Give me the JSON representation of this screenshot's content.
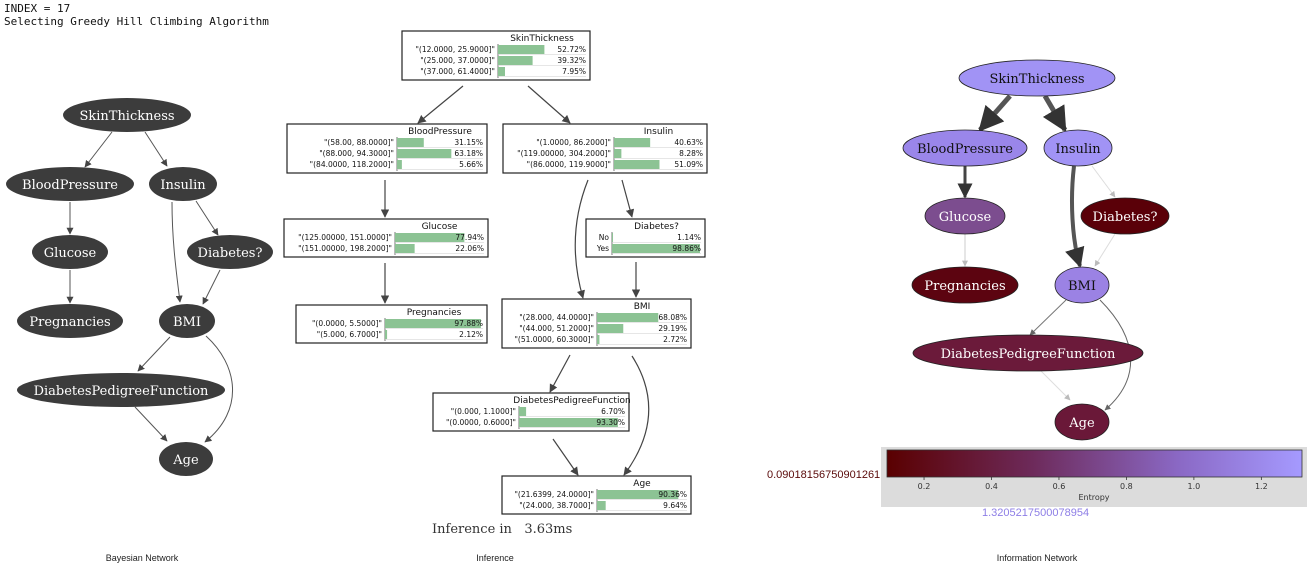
{
  "header": {
    "index_line": "INDEX = 17",
    "algo_line": "Selecting Greedy Hill Climbing Algorithm"
  },
  "captions": {
    "bn": "Bayesian Network",
    "inference": "Inference",
    "info": "Information Network"
  },
  "bn_nodes": {
    "skin": "SkinThickness",
    "bp": "BloodPressure",
    "ins": "Insulin",
    "glu": "Glucose",
    "dia": "Diabetes?",
    "preg": "Pregnancies",
    "bmi": "BMI",
    "dpf": "DiabetesPedigreeFunction",
    "age": "Age"
  },
  "inference": {
    "time_label": "Inference in",
    "time_value": "3.63ms",
    "nodes": [
      {
        "key": "skin",
        "title": "SkinThickness",
        "rows": [
          {
            "label": "\"(12.0000, 25.9000]\"",
            "value": 52.72,
            "pct": "52.72%"
          },
          {
            "label": "\"(25.000, 37.0000]\"",
            "value": 39.32,
            "pct": "39.32%"
          },
          {
            "label": "\"(37.000, 61.4000]\"",
            "value": 7.95,
            "pct": "7.95%"
          }
        ]
      },
      {
        "key": "bp",
        "title": "BloodPressure",
        "rows": [
          {
            "label": "\"(58.00, 88.0000]\"",
            "value": 31.15,
            "pct": "31.15%"
          },
          {
            "label": "\"(88.000, 94.3000]\"",
            "value": 63.18,
            "pct": "63.18%"
          },
          {
            "label": "\"(84.0000, 118.2000]\"",
            "value": 5.66,
            "pct": "5.66%"
          }
        ]
      },
      {
        "key": "ins",
        "title": "Insulin",
        "rows": [
          {
            "label": "\"(1.0000, 86.2000]\"",
            "value": 40.63,
            "pct": "40.63%"
          },
          {
            "label": "\"(119.00000, 304.2000]\"",
            "value": 8.28,
            "pct": "8.28%"
          },
          {
            "label": "\"(86.0000, 119.9000]\"",
            "value": 51.09,
            "pct": "51.09%"
          }
        ]
      },
      {
        "key": "glu",
        "title": "Glucose",
        "rows": [
          {
            "label": "\"(125.00000, 151.0000]\"",
            "value": 77.94,
            "pct": "77.94%"
          },
          {
            "label": "\"(151.00000, 198.2000]\"",
            "value": 22.06,
            "pct": "22.06%"
          }
        ]
      },
      {
        "key": "dia",
        "title": "Diabetes?",
        "rows": [
          {
            "label": "No",
            "value": 1.14,
            "pct": "1.14%"
          },
          {
            "label": "Yes",
            "value": 98.86,
            "pct": "98.86%"
          }
        ]
      },
      {
        "key": "preg",
        "title": "Pregnancies",
        "rows": [
          {
            "label": "\"(0.0000, 5.5000]\"",
            "value": 97.88,
            "pct": "97.88%"
          },
          {
            "label": "\"(5.000, 6.7000]\"",
            "value": 2.12,
            "pct": "2.12%"
          }
        ]
      },
      {
        "key": "bmi",
        "title": "BMI",
        "rows": [
          {
            "label": "\"(28.000, 44.0000]\"",
            "value": 68.08,
            "pct": "68.08%"
          },
          {
            "label": "\"(44.000, 51.2000]\"",
            "value": 29.19,
            "pct": "29.19%"
          },
          {
            "label": "\"(51.0000, 60.3000]\"",
            "value": 2.72,
            "pct": "2.72%"
          }
        ]
      },
      {
        "key": "dpf",
        "title": "DiabetesPedigreeFunction",
        "rows": [
          {
            "label": "\"(0.000, 1.1000]\"",
            "value": 6.7,
            "pct": "6.70%"
          },
          {
            "label": "\"(0.0000, 0.6000]\"",
            "value": 93.3,
            "pct": "93.30%"
          }
        ]
      },
      {
        "key": "age",
        "title": "Age",
        "rows": [
          {
            "label": "\"(21.6399, 24.0000]\"",
            "value": 90.36,
            "pct": "90.36%"
          },
          {
            "label": "\"(24.000, 38.7000]\"",
            "value": 9.64,
            "pct": "9.64%"
          }
        ]
      }
    ]
  },
  "info_network": {
    "nodes": [
      {
        "key": "skin",
        "label": "SkinThickness",
        "color": "#a193f5"
      },
      {
        "key": "bp",
        "label": "BloodPressure",
        "color": "#9a86ea"
      },
      {
        "key": "ins",
        "label": "Insulin",
        "color": "#a193f5"
      },
      {
        "key": "glu",
        "label": "Glucose",
        "color": "#7c4d8f"
      },
      {
        "key": "dia",
        "label": "Diabetes?",
        "color": "#5a0008"
      },
      {
        "key": "preg",
        "label": "Pregnancies",
        "color": "#5c0410"
      },
      {
        "key": "bmi",
        "label": "BMI",
        "color": "#9b82e4"
      },
      {
        "key": "dpf",
        "label": "DiabetesPedigreeFunction",
        "color": "#6b1a3a"
      },
      {
        "key": "age",
        "label": "Age",
        "color": "#6a1838"
      }
    ],
    "colorbar": {
      "label": "Entropy",
      "min_label": "0.09018156750901261",
      "max_label": "1.3205217500078954",
      "min": 0.09018156750901261,
      "max": 1.3205217500078954,
      "ticks": [
        "0.2",
        "0.4",
        "0.6",
        "0.8",
        "1.0",
        "1.2"
      ],
      "tick_values": [
        0.2,
        0.4,
        0.6,
        0.8,
        1.0,
        1.2
      ],
      "color_low": "#5a0000",
      "color_high": "#a59aff"
    }
  },
  "colors": {
    "bar": "#8cc394",
    "bn_node": "#3c3c3c"
  }
}
